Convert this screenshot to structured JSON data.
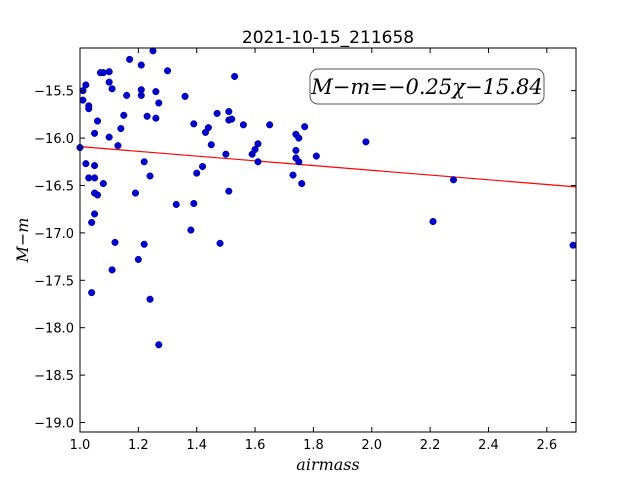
{
  "chart_data": {
    "type": "scatter",
    "title": "2021-10-15_211658",
    "xlabel": "airmass",
    "ylabel": "M−m",
    "xlim": [
      1.0,
      2.7
    ],
    "ylim": [
      -19.1,
      -15.05
    ],
    "y_inverted": true,
    "grid": false,
    "x_ticks": [
      1.0,
      1.2,
      1.4,
      1.6,
      1.8,
      2.0,
      2.2,
      2.4,
      2.6
    ],
    "x_tick_labels": [
      "1.0",
      "1.2",
      "1.4",
      "1.6",
      "1.8",
      "2.0",
      "2.2",
      "2.4",
      "2.6"
    ],
    "y_ticks": [
      -15.5,
      -16.0,
      -16.5,
      -17.0,
      -17.5,
      -18.0,
      -18.5,
      -19.0
    ],
    "y_tick_labels": [
      "−15.5",
      "−16.0",
      "−16.5",
      "−17.0",
      "−17.5",
      "−18.0",
      "−18.5",
      "−19.0"
    ],
    "fit_annotation": "M−m=−0.25χ−15.84",
    "fit_line": {
      "slope": -0.25,
      "intercept": -15.84,
      "color": "#ff0000"
    },
    "point_color": "#0000cc",
    "points": [
      [
        1.0,
        -16.1
      ],
      [
        1.01,
        -15.5
      ],
      [
        1.01,
        -15.6
      ],
      [
        1.02,
        -15.44
      ],
      [
        1.02,
        -16.27
      ],
      [
        1.03,
        -15.66
      ],
      [
        1.03,
        -15.69
      ],
      [
        1.03,
        -16.42
      ],
      [
        1.04,
        -16.89
      ],
      [
        1.04,
        -17.63
      ],
      [
        1.05,
        -16.8
      ],
      [
        1.05,
        -16.29
      ],
      [
        1.05,
        -16.42
      ],
      [
        1.05,
        -16.58
      ],
      [
        1.05,
        -15.95
      ],
      [
        1.06,
        -15.82
      ],
      [
        1.06,
        -16.6
      ],
      [
        1.07,
        -15.31
      ],
      [
        1.08,
        -15.31
      ],
      [
        1.08,
        -16.48
      ],
      [
        1.1,
        -15.3
      ],
      [
        1.1,
        -15.41
      ],
      [
        1.1,
        -15.99
      ],
      [
        1.11,
        -15.48
      ],
      [
        1.11,
        -17.39
      ],
      [
        1.12,
        -17.1
      ],
      [
        1.13,
        -16.08
      ],
      [
        1.14,
        -15.9
      ],
      [
        1.15,
        -15.76
      ],
      [
        1.16,
        -15.55
      ],
      [
        1.17,
        -15.17
      ],
      [
        1.19,
        -16.58
      ],
      [
        1.2,
        -17.28
      ],
      [
        1.21,
        -15.55
      ],
      [
        1.21,
        -15.49
      ],
      [
        1.21,
        -15.23
      ],
      [
        1.22,
        -16.25
      ],
      [
        1.22,
        -17.12
      ],
      [
        1.23,
        -15.77
      ],
      [
        1.24,
        -16.4
      ],
      [
        1.24,
        -17.7
      ],
      [
        1.25,
        -15.08
      ],
      [
        1.26,
        -15.51
      ],
      [
        1.26,
        -15.79
      ],
      [
        1.27,
        -15.63
      ],
      [
        1.27,
        -18.18
      ],
      [
        1.3,
        -15.29
      ],
      [
        1.33,
        -16.7
      ],
      [
        1.36,
        -15.56
      ],
      [
        1.38,
        -16.97
      ],
      [
        1.39,
        -16.69
      ],
      [
        1.39,
        -15.85
      ],
      [
        1.4,
        -16.37
      ],
      [
        1.42,
        -16.3
      ],
      [
        1.43,
        -15.94
      ],
      [
        1.44,
        -15.89
      ],
      [
        1.45,
        -16.07
      ],
      [
        1.47,
        -15.74
      ],
      [
        1.48,
        -17.11
      ],
      [
        1.5,
        -16.17
      ],
      [
        1.51,
        -15.72
      ],
      [
        1.51,
        -15.81
      ],
      [
        1.51,
        -16.56
      ],
      [
        1.52,
        -15.8
      ],
      [
        1.53,
        -15.35
      ],
      [
        1.56,
        -15.86
      ],
      [
        1.59,
        -16.17
      ],
      [
        1.6,
        -16.12
      ],
      [
        1.61,
        -16.06
      ],
      [
        1.61,
        -16.25
      ],
      [
        1.65,
        -15.86
      ],
      [
        1.73,
        -16.39
      ],
      [
        1.74,
        -16.13
      ],
      [
        1.74,
        -16.21
      ],
      [
        1.74,
        -15.96
      ],
      [
        1.75,
        -16.0
      ],
      [
        1.75,
        -16.25
      ],
      [
        1.76,
        -16.48
      ],
      [
        1.77,
        -15.88
      ],
      [
        1.81,
        -16.19
      ],
      [
        1.98,
        -16.04
      ],
      [
        2.21,
        -16.88
      ],
      [
        2.28,
        -16.44
      ],
      [
        2.69,
        -17.13
      ]
    ]
  }
}
